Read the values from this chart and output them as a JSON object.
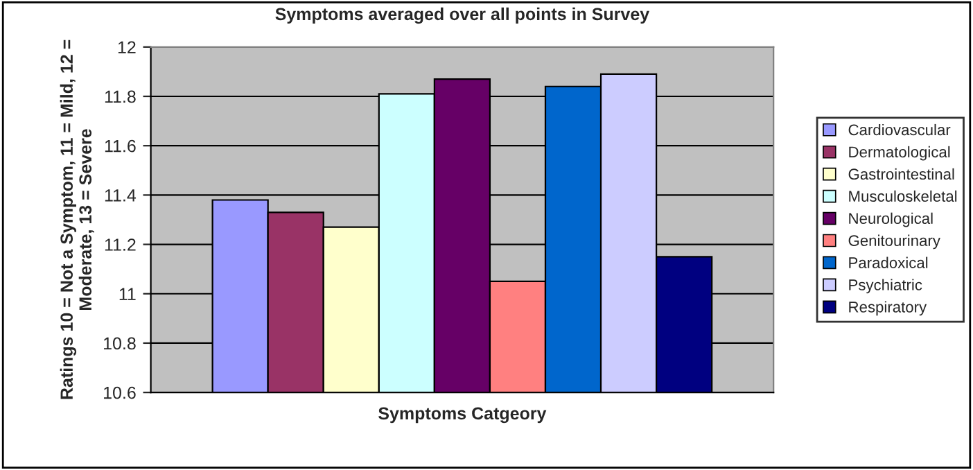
{
  "chart_data": {
    "type": "bar",
    "title": "Symptoms averaged over all points in Survey",
    "xlabel": "Symptoms Catgeory",
    "ylabel": "Ratings 10 = Not a Symptom, 11 = Mild, 12 = Moderate, 13 = Severe",
    "categories": [
      null
    ],
    "series": [
      {
        "name": "Cardiovascular",
        "color": "#9999ff",
        "values": [
          11.38
        ]
      },
      {
        "name": "Dermatological",
        "color": "#993366",
        "values": [
          11.33
        ]
      },
      {
        "name": "Gastrointestinal",
        "color": "#ffffcc",
        "values": [
          11.27
        ]
      },
      {
        "name": "Musculoskeletal",
        "color": "#ccffff",
        "values": [
          11.81
        ]
      },
      {
        "name": "Neurological",
        "color": "#660066",
        "values": [
          11.87
        ]
      },
      {
        "name": "Genitourinary",
        "color": "#ff8080",
        "values": [
          11.05
        ]
      },
      {
        "name": "Paradoxical",
        "color": "#0066cc",
        "values": [
          11.84
        ]
      },
      {
        "name": "Psychiatric",
        "color": "#ccccff",
        "values": [
          11.89
        ]
      },
      {
        "name": "Respiratory",
        "color": "#000080",
        "values": [
          11.15
        ]
      }
    ],
    "ylim": [
      10.6,
      12
    ],
    "yticks": [
      10.6,
      10.8,
      11,
      11.2,
      11.4,
      11.6,
      11.8,
      12
    ],
    "grid": "y",
    "legend": "right"
  }
}
